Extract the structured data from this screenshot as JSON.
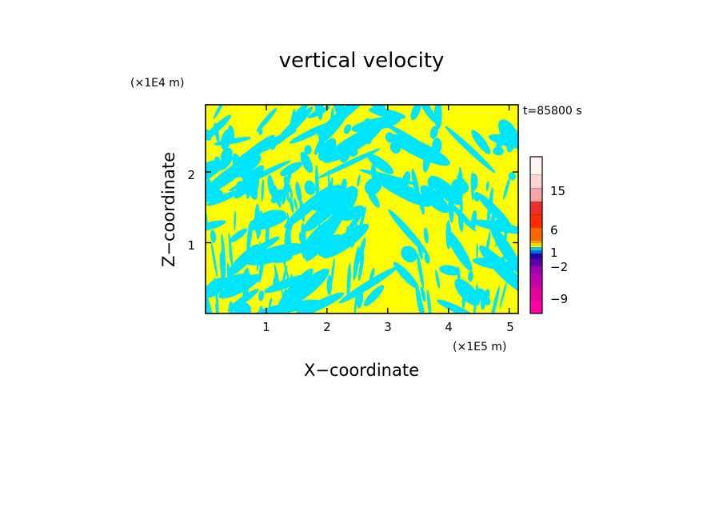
{
  "chart_data": {
    "type": "heatmap",
    "title": "vertical velocity",
    "xlabel": "X−coordinate",
    "ylabel": "Z−coordinate",
    "x_scale_label": "(×1E5 m)",
    "y_scale_label": "(×1E4 m)",
    "time_label": "t=85800 s",
    "xlim": [
      0,
      5.15
    ],
    "ylim": [
      0,
      2.95
    ],
    "x_ticks": [
      "1",
      "2",
      "3",
      "4",
      "5"
    ],
    "y_ticks": [
      "1",
      "2"
    ],
    "field_colors": {
      "positive": "#ffff00",
      "negative": "#00e5ff"
    },
    "colorbar": {
      "labels": [
        "15",
        "6",
        "1",
        "−2",
        "−9"
      ],
      "segments": [
        {
          "color": "#ff00a6"
        },
        {
          "color": "#e6009e"
        },
        {
          "color": "#c000b0"
        },
        {
          "color": "#9a00b8"
        },
        {
          "color": "#5a00aa"
        },
        {
          "color": "#2200b0"
        },
        {
          "color": "#0066e6"
        },
        {
          "color": "#00c8ff"
        },
        {
          "color": "#ffff00"
        },
        {
          "color": "#ffd400"
        },
        {
          "color": "#ff9f00"
        },
        {
          "color": "#ff6600"
        },
        {
          "color": "#ff2a00"
        },
        {
          "color": "#ee2e2e"
        },
        {
          "color": "#f4a6a6"
        },
        {
          "color": "#fbd3d3"
        },
        {
          "color": "#fff3f3"
        }
      ]
    }
  }
}
